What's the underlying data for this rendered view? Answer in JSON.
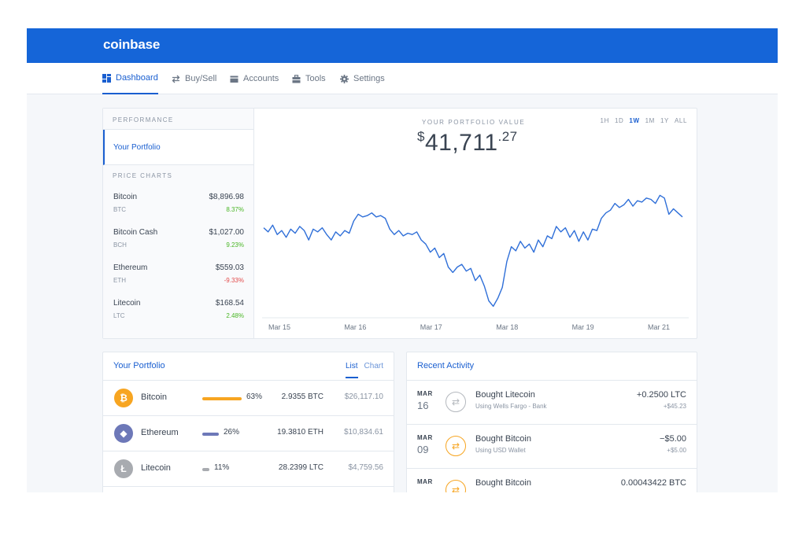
{
  "brand": {
    "name": "coinbase",
    "color": "#1565d8"
  },
  "nav": [
    {
      "label": "Dashboard",
      "icon": "dashboard-icon",
      "active": true
    },
    {
      "label": "Buy/Sell",
      "icon": "swap-arrows-icon"
    },
    {
      "label": "Accounts",
      "icon": "wallet-icon"
    },
    {
      "label": "Tools",
      "icon": "briefcase-icon"
    },
    {
      "label": "Settings",
      "icon": "gear-icon"
    }
  ],
  "sidebar": {
    "performance_label": "PERFORMANCE",
    "your_portfolio": "Your Portfolio",
    "price_charts_label": "PRICE CHARTS",
    "coins": [
      {
        "name": "Bitcoin",
        "symbol": "BTC",
        "price": "$8,896.98",
        "change": "8.37%",
        "positive": true
      },
      {
        "name": "Bitcoin Cash",
        "symbol": "BCH",
        "price": "$1,027.00",
        "change": "9.23%",
        "positive": true
      },
      {
        "name": "Ethereum",
        "symbol": "ETH",
        "price": "$559.03",
        "change": "-9.33%",
        "positive": false
      },
      {
        "name": "Litecoin",
        "symbol": "LTC",
        "price": "$168.54",
        "change": "2.48%",
        "positive": true
      }
    ]
  },
  "portfolio_value": {
    "label": "YOUR PORTFOLIO VALUE",
    "currency": "$",
    "whole": "41,711",
    "cents": ".27"
  },
  "ranges": {
    "options": [
      "1H",
      "1D",
      "1W",
      "1M",
      "1Y",
      "ALL"
    ],
    "selected": "1W"
  },
  "chart_data": {
    "type": "line",
    "x_ticks": [
      "Mar 15",
      "Mar 16",
      "Mar 17",
      "Mar 18",
      "Mar 19",
      "Mar 21"
    ],
    "series": [
      {
        "color": "#2f6fd8",
        "values": [
          40.8,
          40.5,
          41.0,
          40.3,
          40.6,
          40.1,
          40.7,
          40.4,
          40.9,
          40.6,
          39.9,
          40.7,
          40.5,
          40.8,
          40.3,
          39.9,
          40.5,
          40.2,
          40.6,
          40.4,
          41.3,
          41.8,
          41.6,
          41.7,
          41.9,
          41.6,
          41.7,
          41.5,
          40.7,
          40.3,
          40.6,
          40.2,
          40.4,
          40.3,
          40.5,
          39.9,
          39.6,
          39.0,
          39.3,
          38.6,
          38.9,
          37.9,
          37.5,
          37.9,
          38.1,
          37.6,
          37.8,
          36.9,
          37.3,
          36.5,
          35.4,
          35.0,
          35.6,
          36.4,
          38.3,
          39.4,
          39.1,
          39.8,
          39.3,
          39.6,
          39.0,
          39.9,
          39.4,
          40.2,
          40.0,
          40.9,
          40.5,
          40.8,
          40.1,
          40.6,
          39.8,
          40.5,
          39.9,
          40.7,
          40.6,
          41.5,
          41.9,
          42.1,
          42.6,
          42.3,
          42.5,
          42.9,
          42.4,
          42.8,
          42.7,
          43.0,
          42.9,
          42.6,
          43.2,
          43.0,
          41.8,
          42.2,
          41.9,
          41.6
        ]
      }
    ]
  },
  "your_portfolio": {
    "title": "Your Portfolio",
    "tabs": [
      "List",
      "Chart"
    ],
    "active_tab": "List",
    "rows": [
      {
        "name": "Bitcoin",
        "icon": "bitcoin-icon",
        "glyph": "₿",
        "color": "#f7a521",
        "percent": "63%",
        "share": 0.63,
        "amount": "2.9355 BTC",
        "usd": "$26,117.10"
      },
      {
        "name": "Ethereum",
        "icon": "ethereum-icon",
        "glyph": "◆",
        "color": "#6d78b8",
        "percent": "26%",
        "share": 0.26,
        "amount": "19.3810 ETH",
        "usd": "$10,834.61"
      },
      {
        "name": "Litecoin",
        "icon": "litecoin-icon",
        "glyph": "Ł",
        "color": "#a8abb0",
        "percent": "11%",
        "share": 0.11,
        "amount": "28.2399 LTC",
        "usd": "$4,759.56"
      }
    ]
  },
  "recent_activity": {
    "title": "Recent Activity",
    "rows": [
      {
        "month": "MAR",
        "day": "16",
        "action": "Bought Litecoin",
        "via": "Using Wells Fargo - Bank",
        "amount": "+0.2500 LTC",
        "usd": "+$45.23",
        "color": "#b4b8be"
      },
      {
        "month": "MAR",
        "day": "09",
        "action": "Bought Bitcoin",
        "via": "Using USD Wallet",
        "amount": "−$5.00",
        "usd": "+$5.00",
        "color": "#f7a521"
      },
      {
        "month": "MAR",
        "day": "",
        "action": "Bought Bitcoin",
        "via": "",
        "amount": "0.00043422 BTC",
        "usd": "",
        "color": "#f7a521"
      }
    ]
  }
}
